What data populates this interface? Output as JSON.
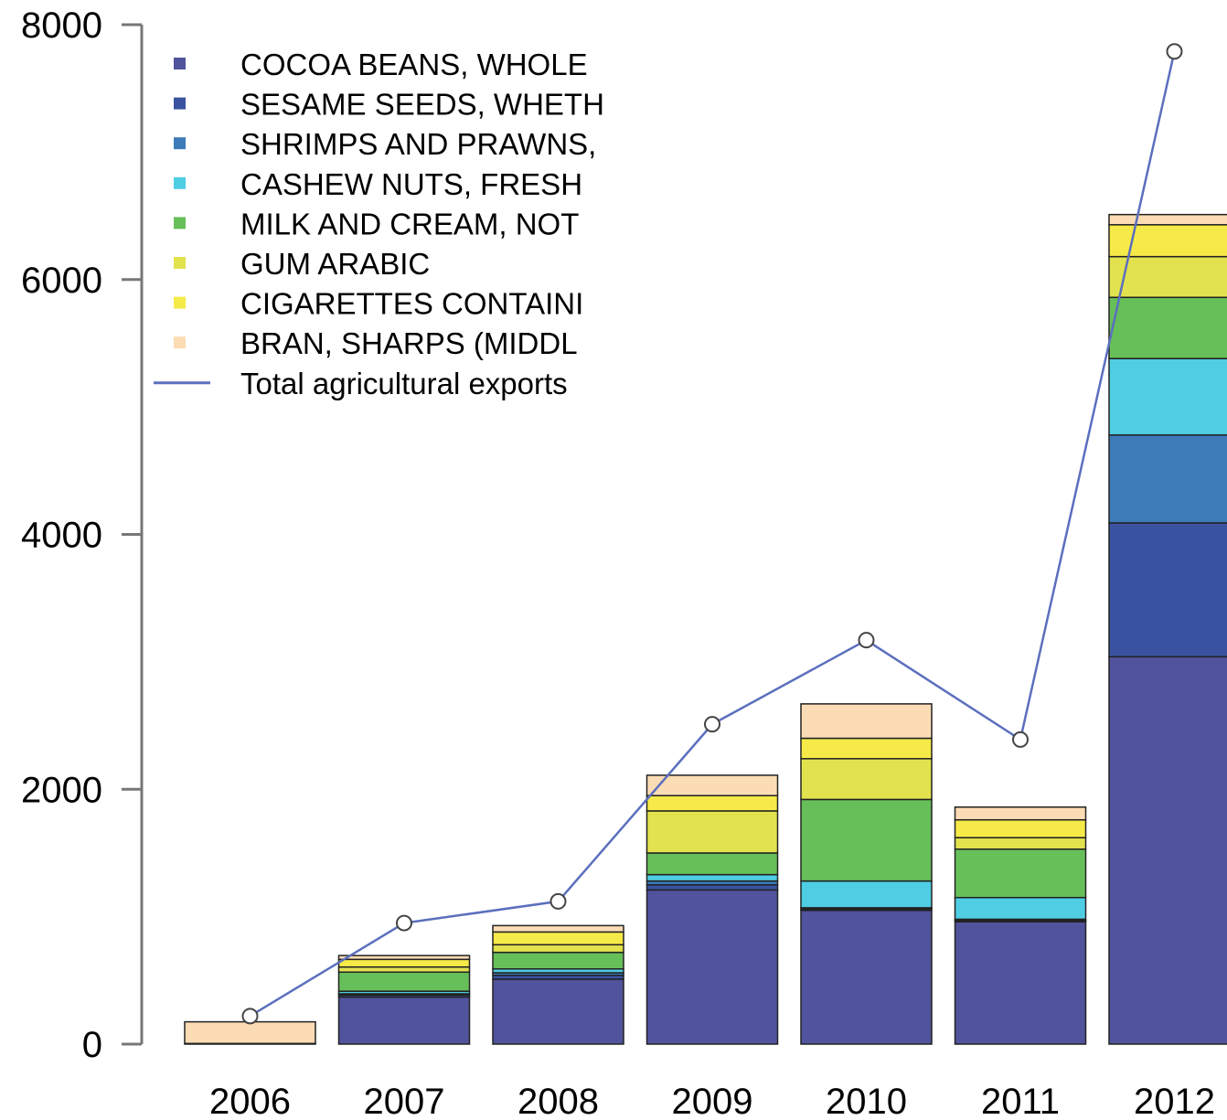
{
  "chart_data": {
    "type": "bar",
    "subtype": "stacked bar with line overlay",
    "categories": [
      "2006",
      "2007",
      "2008",
      "2009",
      "2010",
      "2011",
      "2012"
    ],
    "ylim": [
      0,
      8000
    ],
    "yticks": [
      "0",
      "2000",
      "4000",
      "6000",
      "8000"
    ],
    "grid": false,
    "legend_position": "top-left",
    "series": [
      {
        "name": "COCOA BEANS, WHOLE",
        "color": "#51539c",
        "values": [
          5,
          370,
          510,
          1210,
          1050,
          960,
          3040
        ]
      },
      {
        "name": "SESAME SEEDS, WHETH",
        "color": "#3a53a0",
        "values": [
          0,
          15,
          30,
          40,
          10,
          10,
          1050
        ]
      },
      {
        "name": "SHRIMPS AND PRAWNS,",
        "color": "#3c7bb8",
        "values": [
          0,
          10,
          20,
          30,
          10,
          10,
          690
        ]
      },
      {
        "name": "CASHEW NUTS, FRESH",
        "color": "#4fcde3",
        "values": [
          0,
          20,
          30,
          50,
          210,
          170,
          600
        ]
      },
      {
        "name": "MILK AND CREAM, NOT",
        "color": "#67bf59",
        "values": [
          0,
          150,
          130,
          170,
          640,
          380,
          480
        ]
      },
      {
        "name": "GUM ARABIC",
        "color": "#e2e24e",
        "values": [
          0,
          40,
          60,
          330,
          320,
          90,
          320
        ]
      },
      {
        "name": "CIGARETTES CONTAINI",
        "color": "#f6ea48",
        "values": [
          0,
          60,
          100,
          120,
          160,
          140,
          250
        ]
      },
      {
        "name": "BRAN, SHARPS (MIDDL",
        "color": "#fcdcb4",
        "values": [
          170,
          30,
          50,
          160,
          270,
          100,
          80
        ]
      }
    ],
    "line": {
      "name": "Total agricultural exports",
      "color": "#5b6fbe",
      "values": [
        220,
        950,
        1120,
        2510,
        3170,
        2390,
        7790
      ]
    },
    "title": "",
    "xlabel": "",
    "ylabel": ""
  }
}
